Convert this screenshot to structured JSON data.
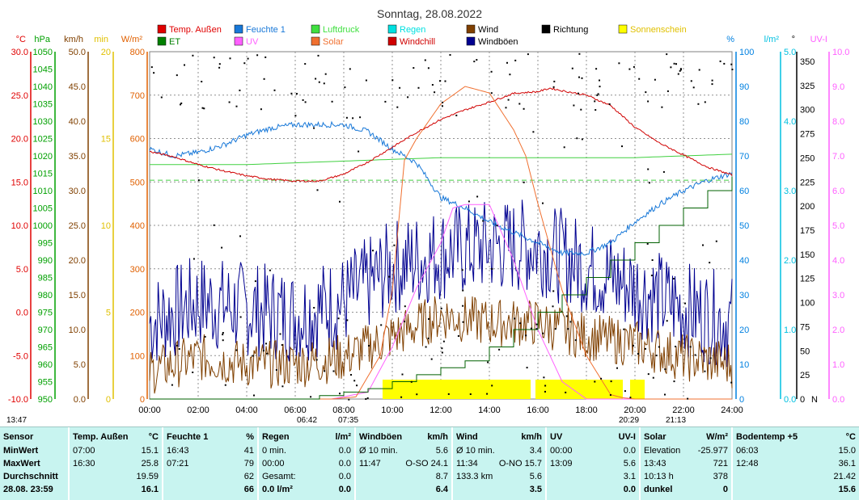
{
  "chart_data": {
    "type": "line",
    "title": "Sonntag, 28.08.2022",
    "x_ticks": [
      "00:00",
      "02:00",
      "04:00",
      "06:00",
      "08:00",
      "10:00",
      "12:00",
      "14:00",
      "16:00",
      "18:00",
      "20:00",
      "22:00",
      "24:00"
    ],
    "x_range_hours": [
      0,
      24
    ],
    "left_axes": [
      {
        "unit": "°C",
        "color": "#e00000",
        "range": [
          -10,
          30
        ],
        "ticks": [
          "30.0",
          "25.0",
          "20.0",
          "15.0",
          "10.0",
          "5.0",
          "0.0",
          "-5.0",
          "-10.0"
        ]
      },
      {
        "unit": "hPa",
        "color": "#00a000",
        "range": [
          950,
          1050
        ],
        "ticks": [
          "1050",
          "1045",
          "1040",
          "1035",
          "1030",
          "1025",
          "1020",
          "1015",
          "1010",
          "1005",
          "1000",
          "995",
          "990",
          "985",
          "980",
          "975",
          "970",
          "965",
          "960",
          "955",
          "950"
        ]
      },
      {
        "unit": "km/h",
        "color": "#804000",
        "range": [
          0,
          50
        ],
        "ticks": [
          "50.0",
          "45.0",
          "40.0",
          "35.0",
          "30.0",
          "25.0",
          "20.0",
          "15.0",
          "10.0",
          "5.0",
          "0.0"
        ]
      },
      {
        "unit": "min",
        "color": "#e0c000",
        "range": [
          0,
          20
        ],
        "ticks": [
          "20",
          "15",
          "10",
          "5",
          "0"
        ]
      },
      {
        "unit": "W/m²",
        "color": "#e06000",
        "range": [
          0,
          800
        ],
        "ticks": [
          "800",
          "700",
          "600",
          "500",
          "400",
          "300",
          "200",
          "100",
          "0"
        ]
      }
    ],
    "right_axes": [
      {
        "unit": "%",
        "color": "#0080e0",
        "range": [
          0,
          100
        ],
        "ticks": [
          "100",
          "90",
          "80",
          "70",
          "60",
          "50",
          "40",
          "30",
          "20",
          "10",
          "0"
        ]
      },
      {
        "unit": "l/m²",
        "color": "#00c0e0",
        "range": [
          0,
          5
        ],
        "ticks": [
          "5.0",
          "4.0",
          "3.0",
          "2.0",
          "1.0",
          "0.0"
        ]
      },
      {
        "unit": "°",
        "color": "#000000",
        "range": [
          0,
          360
        ],
        "ticks": [
          "350",
          "325",
          "300",
          "275",
          "250",
          "225",
          "200",
          "175",
          "150",
          "125",
          "100",
          "75",
          "50",
          "25",
          "0"
        ],
        "north_label": "N"
      },
      {
        "unit": "UV-I",
        "color": "#ff60ff",
        "range": [
          0,
          10
        ],
        "ticks": [
          "10.0",
          "9.0",
          "8.0",
          "7.0",
          "6.0",
          "5.0",
          "4.0",
          "3.0",
          "2.0",
          "1.0",
          "0.0"
        ]
      }
    ],
    "legend": [
      {
        "label": "Temp. Außen",
        "color": "#e00000"
      },
      {
        "label": "ET",
        "color": "#008000"
      },
      {
        "label": "Feuchte 1",
        "color": "#1878d8"
      },
      {
        "label": "UV",
        "color": "#ff60ff"
      },
      {
        "label": "Luftdruck",
        "color": "#40e040"
      },
      {
        "label": "Solar",
        "color": "#f07030"
      },
      {
        "label": "Regen",
        "color": "#00e0e0"
      },
      {
        "label": "Windchill",
        "color": "#d00000"
      },
      {
        "label": "Wind",
        "color": "#804000"
      },
      {
        "label": "Windböen",
        "color": "#000090"
      },
      {
        "label": "Richtung",
        "color": "#000000"
      },
      {
        "label": "Sonnenschein",
        "color": "#ffff00"
      }
    ],
    "series": [
      {
        "name": "Temp. Außen",
        "x": [
          0,
          1,
          2,
          3,
          4,
          5,
          6,
          7,
          8,
          9,
          10,
          11,
          12,
          13,
          14,
          15,
          16,
          16.5,
          17,
          18,
          19,
          20,
          21,
          22,
          23,
          24
        ],
        "values": [
          18.5,
          17.9,
          17.0,
          16.3,
          15.7,
          15.3,
          15.1,
          15.1,
          15.9,
          17.3,
          19.0,
          20.7,
          22.2,
          23.3,
          24.2,
          25.2,
          25.4,
          25.8,
          25.5,
          25.0,
          23.8,
          21.3,
          19.5,
          18.1,
          16.7,
          15.8
        ]
      },
      {
        "name": "Feuchte 1",
        "x": [
          0,
          1,
          2,
          3,
          4,
          5,
          6,
          7,
          8,
          9,
          10,
          11,
          12,
          13,
          14,
          15,
          16,
          17,
          18,
          19,
          20,
          21,
          22,
          23,
          24
        ],
        "values": [
          72,
          70,
          71,
          73,
          76,
          78,
          79,
          79,
          79,
          77,
          72,
          68,
          58,
          55,
          51,
          48,
          45,
          42,
          42,
          45,
          51,
          56,
          60,
          63,
          65
        ]
      },
      {
        "name": "Luftdruck",
        "x": [
          0,
          4,
          8,
          12,
          16,
          20,
          24
        ],
        "values": [
          1017.5,
          1017.5,
          1018.5,
          1019.5,
          1019.5,
          1019.5,
          1020.5
        ]
      },
      {
        "name": "ET",
        "x": [
          0,
          7,
          8,
          9,
          10,
          11,
          12,
          13,
          14,
          15,
          16,
          17,
          18,
          19,
          20,
          21,
          22,
          23,
          24
        ],
        "values": [
          0.0,
          0.05,
          0.1,
          0.15,
          0.25,
          0.35,
          0.45,
          0.55,
          0.75,
          1.0,
          1.25,
          1.5,
          1.75,
          2.0,
          2.25,
          2.5,
          2.75,
          3.0,
          3.2
        ]
      },
      {
        "name": "UV",
        "x": [
          0,
          7.5,
          9,
          10,
          11,
          12,
          12.5,
          13,
          14,
          15,
          16,
          17,
          18,
          24
        ],
        "values": [
          0,
          0,
          0.2,
          1.5,
          3.2,
          4.5,
          5.5,
          5.6,
          5.6,
          4.0,
          2.0,
          0.5,
          0,
          0
        ]
      },
      {
        "name": "Solar",
        "x": [
          0,
          7.5,
          8.5,
          9.5,
          10,
          10.5,
          11,
          12,
          13,
          14,
          15,
          15.5,
          16,
          17,
          18,
          19,
          19.5,
          20,
          24
        ],
        "values": [
          0,
          0,
          5,
          100,
          250,
          550,
          600,
          680,
          720,
          705,
          620,
          560,
          450,
          250,
          100,
          10,
          3,
          0,
          0
        ]
      },
      {
        "name": "Wind",
        "note": "mean wind speed, fluctuating",
        "x": [
          0,
          2,
          4,
          6,
          8,
          10,
          12,
          14,
          16,
          18,
          20,
          22,
          24
        ],
        "values": [
          4,
          6,
          5,
          5,
          6,
          9,
          12,
          11,
          11,
          9,
          8,
          6,
          5
        ]
      },
      {
        "name": "Windböen",
        "note": "gust speed, fluctuating",
        "x": [
          0,
          2,
          4,
          6,
          8,
          10,
          12,
          14,
          16,
          18,
          20,
          22,
          24
        ],
        "values": [
          11,
          14,
          13,
          12,
          14,
          19,
          21,
          22,
          22,
          19,
          16,
          13,
          11
        ]
      },
      {
        "name": "Richtung",
        "note": "wind direction scatter (degrees), mostly 300-360 and 0-100"
      }
    ],
    "sunshine_blocks_hours": [
      [
        9.6,
        15.7
      ],
      [
        15.9,
        19.5
      ],
      [
        19.8,
        20.4
      ]
    ],
    "markers": {
      "sunrise": "06:42",
      "sunset": "20:29",
      "sunshine_start": "07:35",
      "sunshine_end": "21:13",
      "day_length_note": "13:47"
    }
  },
  "stats": {
    "sensor": {
      "title": "Sensor",
      "rows": [
        "MinWert",
        "MaxWert",
        "Durchschnitt",
        "28.08. 23:59"
      ]
    },
    "temp": {
      "title": "Temp. Außen",
      "unit": "°C",
      "rows": [
        [
          "07:00",
          "15.1"
        ],
        [
          "16:30",
          "25.8"
        ],
        [
          "",
          "19.59"
        ],
        [
          "",
          "16.1"
        ]
      ]
    },
    "humidity": {
      "title": "Feuchte 1",
      "unit": "%",
      "rows": [
        [
          "16:43",
          "41"
        ],
        [
          "07:21",
          "79"
        ],
        [
          "",
          "62"
        ],
        [
          "",
          "66"
        ]
      ]
    },
    "rain": {
      "title": "Regen",
      "unit": "l/m²",
      "rows": [
        [
          "0 min.",
          "0.0"
        ],
        [
          "00:00",
          "0.0"
        ],
        [
          "Gesamt:",
          "0.0"
        ],
        [
          "0.0 l/m²",
          "0.0"
        ]
      ]
    },
    "gusts": {
      "title": "Windböen",
      "unit": "km/h",
      "rows": [
        [
          "Ø 10 min.",
          "5.6"
        ],
        [
          "11:47",
          "O-SO 24.1"
        ],
        [
          "",
          "8.7"
        ],
        [
          "",
          "6.4"
        ]
      ]
    },
    "wind": {
      "title": "Wind",
      "unit": "km/h",
      "rows": [
        [
          "Ø 10 min.",
          "3.4"
        ],
        [
          "11:34",
          "O-NO 15.7"
        ],
        [
          "133.3 km",
          "5.6"
        ],
        [
          "",
          "3.5"
        ]
      ]
    },
    "uv": {
      "title": "UV",
      "unit": "UV-I",
      "rows": [
        [
          "00:00",
          "0.0"
        ],
        [
          "13:09",
          "5.6"
        ],
        [
          "",
          "3.1"
        ],
        [
          "",
          "0.0"
        ]
      ]
    },
    "solar": {
      "title": "Solar",
      "unit": "W/m²",
      "rows": [
        [
          "Elevation",
          "-25.977"
        ],
        [
          "13:43",
          "721"
        ],
        [
          "10:13 h",
          "378"
        ],
        [
          "dunkel",
          "0"
        ]
      ]
    },
    "soil": {
      "title": "Bodentemp +5",
      "unit": "°C",
      "rows": [
        [
          "06:03",
          "15.0"
        ],
        [
          "12:48",
          "36.1"
        ],
        [
          "",
          "21.42"
        ],
        [
          "",
          "15.6"
        ]
      ]
    }
  }
}
